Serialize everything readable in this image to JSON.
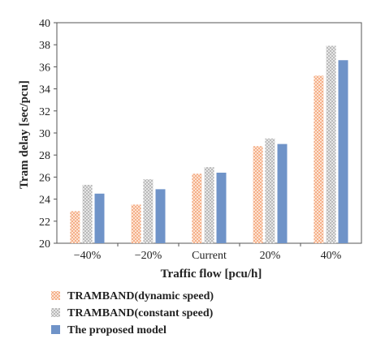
{
  "chart_data": {
    "type": "bar",
    "categories": [
      "−40%",
      "−20%",
      "Current",
      "20%",
      "40%"
    ],
    "series": [
      {
        "name": "TRAMBAND(dynamic speed)",
        "values": [
          22.9,
          23.5,
          26.3,
          28.8,
          35.2
        ],
        "color": "#f4a87c",
        "pattern": "dotted"
      },
      {
        "name": "TRAMBAND(constant speed)",
        "values": [
          25.3,
          25.8,
          26.9,
          29.5,
          37.9
        ],
        "color": "#b5b5b5",
        "pattern": "dotted"
      },
      {
        "name": "The proposed model",
        "values": [
          24.5,
          24.9,
          26.4,
          29.0,
          36.6
        ],
        "color": "#6f93c8",
        "pattern": "solid"
      }
    ],
    "xlabel": "Traffic flow [pcu/h]",
    "ylabel": "Tram delay [sec/pcu]",
    "ylim": [
      20,
      40
    ],
    "yticks": [
      20,
      22,
      24,
      26,
      28,
      30,
      32,
      34,
      36,
      38,
      40
    ],
    "grid": false,
    "legend_position": "bottom-left"
  }
}
